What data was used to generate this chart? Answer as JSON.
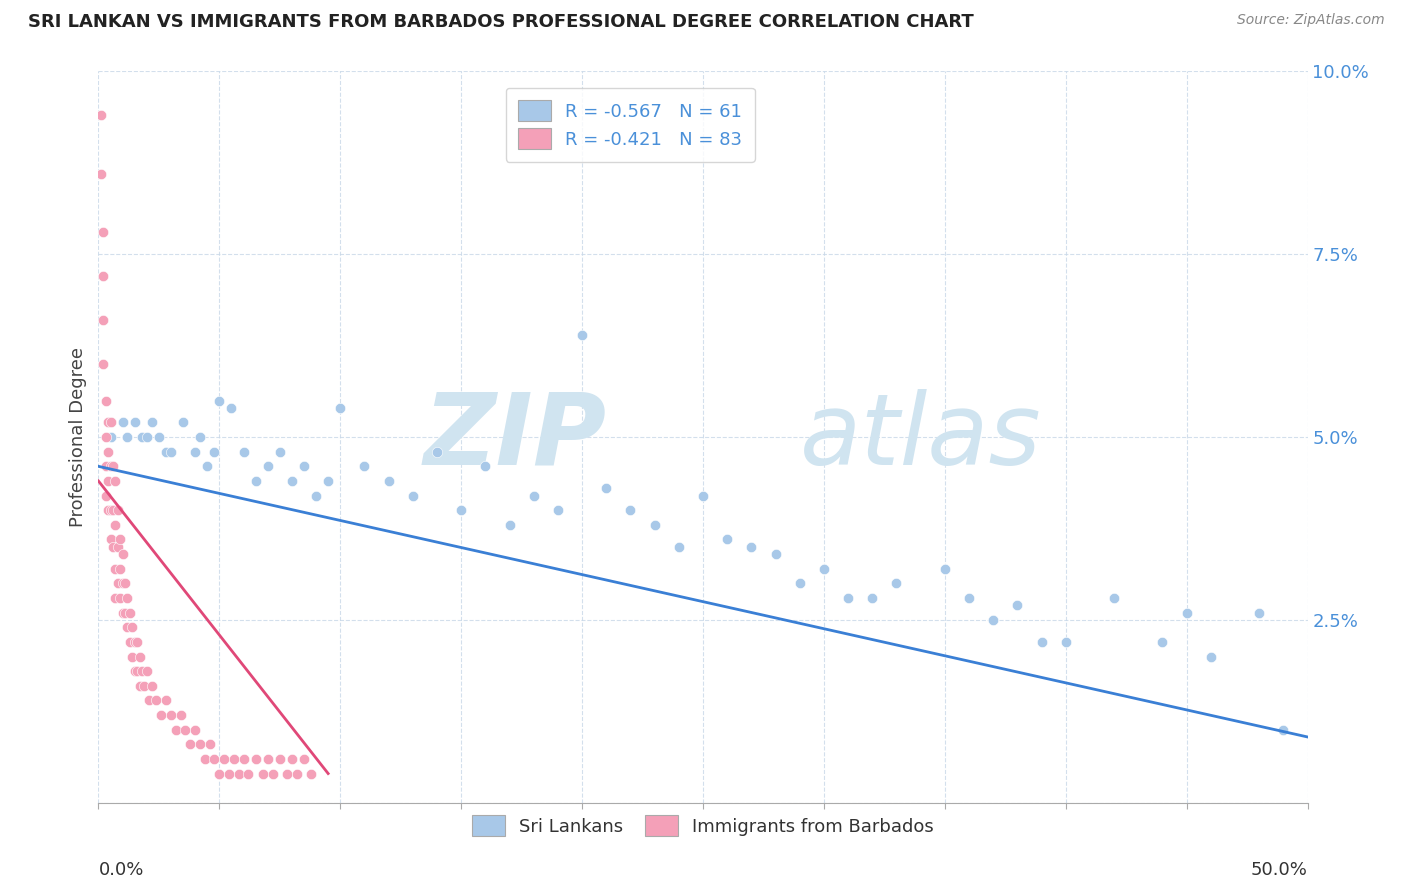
{
  "title": "SRI LANKAN VS IMMIGRANTS FROM BARBADOS PROFESSIONAL DEGREE CORRELATION CHART",
  "source": "Source: ZipAtlas.com",
  "ylabel": "Professional Degree",
  "legend_label_1": "Sri Lankans",
  "legend_label_2": "Immigrants from Barbados",
  "dot_color_sri": "#a8c8e8",
  "dot_color_bar": "#f4a0b8",
  "line_color_sri": "#3a7fd5",
  "line_color_bar": "#e04878",
  "watermark_zip": "ZIP",
  "watermark_atlas": "atlas",
  "watermark_color": "#d0e4f0",
  "sri_lankan_R": -0.567,
  "sri_lankan_N": 61,
  "barbados_R": -0.421,
  "barbados_N": 83,
  "xmin": 0.0,
  "xmax": 0.5,
  "ymin": 0.0,
  "ymax": 0.1,
  "sri_x": [
    0.005,
    0.01,
    0.012,
    0.015,
    0.018,
    0.02,
    0.022,
    0.025,
    0.028,
    0.03,
    0.035,
    0.04,
    0.042,
    0.045,
    0.048,
    0.05,
    0.055,
    0.06,
    0.065,
    0.07,
    0.075,
    0.08,
    0.085,
    0.09,
    0.095,
    0.1,
    0.11,
    0.12,
    0.13,
    0.14,
    0.15,
    0.16,
    0.17,
    0.18,
    0.19,
    0.2,
    0.21,
    0.22,
    0.23,
    0.24,
    0.25,
    0.26,
    0.27,
    0.28,
    0.29,
    0.3,
    0.31,
    0.32,
    0.33,
    0.35,
    0.36,
    0.37,
    0.38,
    0.39,
    0.4,
    0.42,
    0.44,
    0.45,
    0.46,
    0.48,
    0.49
  ],
  "sri_y": [
    0.05,
    0.052,
    0.05,
    0.052,
    0.05,
    0.05,
    0.052,
    0.05,
    0.048,
    0.048,
    0.052,
    0.048,
    0.05,
    0.046,
    0.048,
    0.055,
    0.054,
    0.048,
    0.044,
    0.046,
    0.048,
    0.044,
    0.046,
    0.042,
    0.044,
    0.054,
    0.046,
    0.044,
    0.042,
    0.048,
    0.04,
    0.046,
    0.038,
    0.042,
    0.04,
    0.064,
    0.043,
    0.04,
    0.038,
    0.035,
    0.042,
    0.036,
    0.035,
    0.034,
    0.03,
    0.032,
    0.028,
    0.028,
    0.03,
    0.032,
    0.028,
    0.025,
    0.027,
    0.022,
    0.022,
    0.028,
    0.022,
    0.026,
    0.02,
    0.026,
    0.01
  ],
  "bar_x": [
    0.001,
    0.001,
    0.002,
    0.002,
    0.002,
    0.002,
    0.003,
    0.003,
    0.003,
    0.003,
    0.004,
    0.004,
    0.004,
    0.004,
    0.005,
    0.005,
    0.005,
    0.005,
    0.006,
    0.006,
    0.006,
    0.007,
    0.007,
    0.007,
    0.007,
    0.008,
    0.008,
    0.008,
    0.009,
    0.009,
    0.009,
    0.01,
    0.01,
    0.01,
    0.011,
    0.011,
    0.012,
    0.012,
    0.013,
    0.013,
    0.014,
    0.014,
    0.015,
    0.015,
    0.016,
    0.016,
    0.017,
    0.017,
    0.018,
    0.019,
    0.02,
    0.021,
    0.022,
    0.024,
    0.026,
    0.028,
    0.03,
    0.032,
    0.034,
    0.036,
    0.038,
    0.04,
    0.042,
    0.044,
    0.046,
    0.048,
    0.05,
    0.052,
    0.054,
    0.056,
    0.058,
    0.06,
    0.062,
    0.065,
    0.068,
    0.07,
    0.072,
    0.075,
    0.078,
    0.08,
    0.082,
    0.085,
    0.088
  ],
  "bar_y": [
    0.094,
    0.086,
    0.078,
    0.072,
    0.066,
    0.06,
    0.055,
    0.05,
    0.046,
    0.042,
    0.052,
    0.048,
    0.044,
    0.04,
    0.052,
    0.046,
    0.04,
    0.036,
    0.046,
    0.04,
    0.035,
    0.044,
    0.038,
    0.032,
    0.028,
    0.04,
    0.035,
    0.03,
    0.036,
    0.032,
    0.028,
    0.034,
    0.03,
    0.026,
    0.03,
    0.026,
    0.028,
    0.024,
    0.026,
    0.022,
    0.024,
    0.02,
    0.022,
    0.018,
    0.022,
    0.018,
    0.02,
    0.016,
    0.018,
    0.016,
    0.018,
    0.014,
    0.016,
    0.014,
    0.012,
    0.014,
    0.012,
    0.01,
    0.012,
    0.01,
    0.008,
    0.01,
    0.008,
    0.006,
    0.008,
    0.006,
    0.004,
    0.006,
    0.004,
    0.006,
    0.004,
    0.006,
    0.004,
    0.006,
    0.004,
    0.006,
    0.004,
    0.006,
    0.004,
    0.006,
    0.004,
    0.006,
    0.004
  ],
  "sri_line_x0": 0.0,
  "sri_line_y0": 0.046,
  "sri_line_x1": 0.5,
  "sri_line_y1": 0.009,
  "bar_line_x0": 0.0,
  "bar_line_y0": 0.044,
  "bar_line_x1": 0.095,
  "bar_line_y1": 0.004
}
